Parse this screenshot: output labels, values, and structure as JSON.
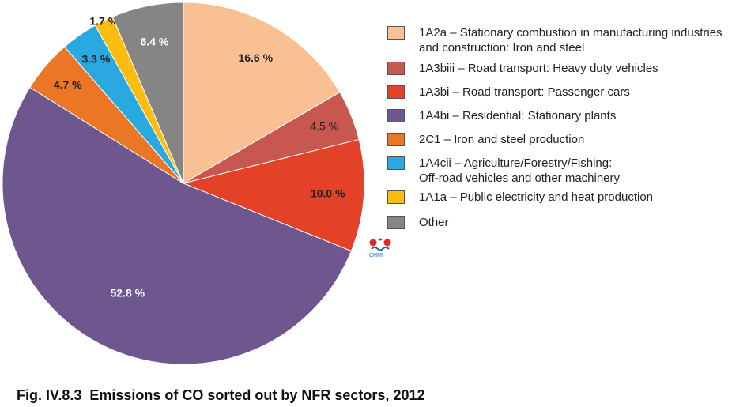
{
  "chart_data": {
    "type": "pie",
    "slices": [
      {
        "label": "1A2a – Stationary combustion in manufacturing industries\nand construction: Iron and steel",
        "value": 16.6,
        "display": "16.6 %",
        "color": "#f8c093",
        "label_color": "#222222",
        "bold": true
      },
      {
        "label": "1A3biii – Road transport: Heavy duty vehicles",
        "value": 4.5,
        "display": "4.5 %",
        "color": "#c85750",
        "label_color": "#222222",
        "bold": false
      },
      {
        "label": "1A3bi – Road transport: Passenger cars",
        "value": 10.0,
        "display": "10.0 %",
        "color": "#e34128",
        "label_color": "#222222",
        "bold": true
      },
      {
        "label": "1A4bi  – Residential: Stationary plants",
        "value": 52.8,
        "display": "52.8 %",
        "color": "#6e568e",
        "label_color": "#ffffff",
        "bold": true
      },
      {
        "label": "2C1 – Iron and steel production",
        "value": 4.7,
        "display": "4.7 %",
        "color": "#ea7626",
        "label_color": "#222222",
        "bold": true
      },
      {
        "label": "1A4cii – Agriculture/Forestry/Fishing:\nOff-road vehicles and other machinery",
        "value": 3.3,
        "display": "3.3 %",
        "color": "#2aa9e1",
        "label_color": "#222222",
        "bold": true
      },
      {
        "label": "1A1a – Public electricity and heat production",
        "value": 1.7,
        "display": "1.7 %",
        "color": "#fbbd10",
        "label_color": "#222222",
        "bold": true
      },
      {
        "label": "Other",
        "value": 6.4,
        "display": "6.4 %",
        "color": "#858585",
        "label_color": "#ffffff",
        "bold": true
      }
    ],
    "start_angle": "12 o'clock",
    "direction": "clockwise",
    "legend_position": "right"
  },
  "caption": "Fig. IV.8.3  Emissions of CO sorted out by NFR sectors, 2012",
  "logo": {
    "text": "CHMI",
    "icon": "chmi-logo-icon",
    "colors": [
      "#e3262a",
      "#1a6aa8"
    ]
  }
}
